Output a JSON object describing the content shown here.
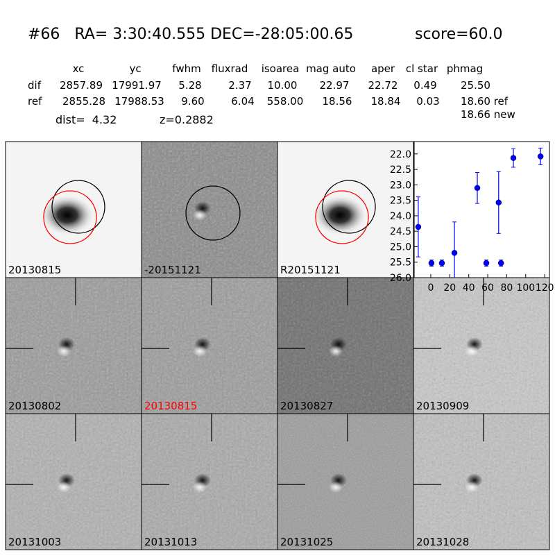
{
  "header": {
    "title": "#66   RA= 3:30:40.555 DEC=-28:05:00.65",
    "score": "score=60.0"
  },
  "table": {
    "columns": [
      "xc",
      "yc",
      "fwhm",
      "fluxrad",
      "isoarea",
      "mag auto",
      "aper",
      "cl star",
      "phmag"
    ],
    "rows": [
      {
        "label": "dif",
        "cells": [
          "2857.89",
          "17991.97",
          "5.28",
          "2.37",
          "10.00",
          "22.97",
          "22.72",
          "0.49",
          "25.50"
        ]
      },
      {
        "label": "ref",
        "cells": [
          "2855.28",
          "17988.53",
          "9.60",
          "6.04",
          "558.00",
          "18.56",
          "18.84",
          "0.03",
          "18.60 ref"
        ]
      }
    ],
    "extra": "18.66 new"
  },
  "dist": "dist=  4.32",
  "redshift": "z=0.2882",
  "panels": [
    {
      "label": "20130815"
    },
    {
      "label": "-20151121"
    },
    {
      "label": "R20151121"
    },
    {
      "label": "20130802"
    },
    {
      "label": "20130815",
      "color": "#ff0000"
    },
    {
      "label": "20130827"
    },
    {
      "label": "20130909"
    },
    {
      "label": "20131003"
    },
    {
      "label": "20131013"
    },
    {
      "label": "20131025"
    },
    {
      "label": "20131028"
    }
  ],
  "chart_data": {
    "type": "errorbar",
    "x": [
      -13.2,
      0.7,
      11.7,
      24.9,
      49,
      58.5,
      71.5,
      74,
      87,
      115.6
    ],
    "values": [
      24.36,
      25.53,
      25.53,
      25.2,
      23.1,
      25.53,
      23.57,
      25.53,
      22.13,
      22.08
    ],
    "errors": [
      0.97,
      0.1,
      0.1,
      1.0,
      0.5,
      0.1,
      1.0,
      0.1,
      0.3,
      0.27
    ],
    "color": "#0000ff",
    "xlim": [
      -17.5,
      125
    ],
    "ylim": [
      26.0,
      21.6
    ],
    "xticks": [
      0,
      20,
      40,
      60,
      80,
      100,
      120
    ],
    "yticks": [
      {
        "value": 22.0,
        "label": "22.0"
      },
      22.5,
      {
        "value": 23.0,
        "label": "23.0"
      },
      23.5,
      {
        "value": 24.0,
        "label": "24.0"
      },
      24.5,
      {
        "value": 25.0,
        "label": "25.0"
      },
      25.5,
      {
        "value": 26.0,
        "label": "26.0"
      }
    ]
  }
}
